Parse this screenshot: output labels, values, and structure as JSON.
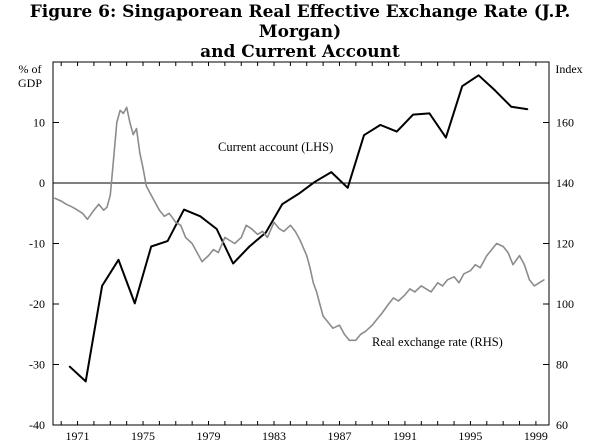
{
  "title": {
    "line1": "Figure 6: Singaporean Real Effective Exchange Rate (J.P. Morgan)",
    "line2": "and Current Account"
  },
  "chart_data": {
    "type": "line",
    "title": "Figure 6: Singaporean Real Effective Exchange Rate (J.P. Morgan) and Current Account",
    "left_axis": {
      "label_line1": "% of",
      "label_line2": "GDP",
      "range": [
        -40,
        20
      ],
      "ticks": [
        -40,
        -30,
        -20,
        -10,
        0,
        10
      ]
    },
    "right_axis": {
      "label": "Index",
      "range": [
        60,
        180
      ],
      "ticks": [
        60,
        80,
        100,
        120,
        140,
        160
      ]
    },
    "x_axis": {
      "range": [
        1969.5,
        1999.8
      ],
      "ticks": [
        1971,
        1975,
        1979,
        1983,
        1987,
        1991,
        1995,
        1999
      ],
      "minor_ticks_per_year": true
    },
    "zero_line": true,
    "series": [
      {
        "name": "Current account",
        "annotation": "Current account (LHS)",
        "axis": "left",
        "color": "#000000",
        "x": [
          1970.5,
          1971.5,
          1972.5,
          1973.5,
          1974.5,
          1975.5,
          1976.5,
          1977.5,
          1978.5,
          1979.5,
          1980.5,
          1981.5,
          1982.5,
          1983.5,
          1984.5,
          1985.5,
          1986.5,
          1987.5,
          1988.5,
          1989.5,
          1990.5,
          1991.5,
          1992.5,
          1993.5,
          1994.5,
          1995.5,
          1996.5,
          1997.5,
          1998.5
        ],
        "y": [
          -30.3,
          -32.8,
          -17.0,
          -12.7,
          -19.9,
          -10.5,
          -9.6,
          -4.4,
          -5.5,
          -7.6,
          -13.3,
          -10.5,
          -8.2,
          -3.5,
          -1.8,
          0.2,
          1.8,
          -0.8,
          7.9,
          9.6,
          8.5,
          11.3,
          11.5,
          7.5,
          16.0,
          17.8,
          15.3,
          12.6,
          12.2
        ]
      },
      {
        "name": "Real exchange rate",
        "annotation": "Real exchange rate (RHS)",
        "axis": "right",
        "color": "#8c8c8c",
        "x": [
          1969.6,
          1970.0,
          1970.3,
          1970.7,
          1971.0,
          1971.3,
          1971.6,
          1972.0,
          1972.3,
          1972.6,
          1972.8,
          1973.0,
          1973.2,
          1973.4,
          1973.6,
          1973.8,
          1974.0,
          1974.2,
          1974.4,
          1974.6,
          1974.8,
          1975.0,
          1975.2,
          1975.5,
          1975.8,
          1976.0,
          1976.3,
          1976.6,
          1977.0,
          1977.3,
          1977.6,
          1978.0,
          1978.3,
          1978.6,
          1979.0,
          1979.3,
          1979.6,
          1980.0,
          1980.3,
          1980.6,
          1981.0,
          1981.3,
          1981.6,
          1982.0,
          1982.3,
          1982.6,
          1983.0,
          1983.3,
          1983.6,
          1984.0,
          1984.3,
          1984.6,
          1985.0,
          1985.2,
          1985.4,
          1985.6,
          1985.8,
          1986.0,
          1986.3,
          1986.6,
          1987.0,
          1987.3,
          1987.6,
          1988.0,
          1988.3,
          1988.6,
          1989.0,
          1989.3,
          1989.6,
          1990.0,
          1990.3,
          1990.6,
          1991.0,
          1991.3,
          1991.6,
          1992.0,
          1992.3,
          1992.6,
          1993.0,
          1993.3,
          1993.6,
          1994.0,
          1994.3,
          1994.6,
          1995.0,
          1995.3,
          1995.6,
          1996.0,
          1996.3,
          1996.6,
          1997.0,
          1997.3,
          1997.6,
          1998.0,
          1998.3,
          1998.6,
          1998.9,
          1999.2,
          1999.5
        ],
        "y": [
          135,
          134,
          133,
          132,
          131,
          130,
          128,
          131,
          133,
          131,
          132,
          136,
          148,
          160,
          164,
          163,
          165,
          160,
          156,
          158,
          150,
          145,
          139,
          136,
          133,
          131,
          129,
          130,
          127,
          126,
          122,
          120,
          117,
          114,
          116,
          118,
          117,
          122,
          121,
          120,
          122,
          126,
          125,
          123,
          124,
          122,
          127,
          125,
          124,
          126,
          124,
          121,
          116,
          112,
          107,
          104,
          100,
          96,
          94,
          92,
          93,
          90,
          88,
          88,
          90,
          91,
          93,
          95,
          97,
          100,
          102,
          101,
          103,
          105,
          104,
          106,
          105,
          104,
          107,
          106,
          108,
          109,
          107,
          110,
          111,
          113,
          112,
          116,
          118,
          120,
          119,
          117,
          113,
          116,
          113,
          108,
          106,
          107,
          108
        ]
      }
    ]
  }
}
